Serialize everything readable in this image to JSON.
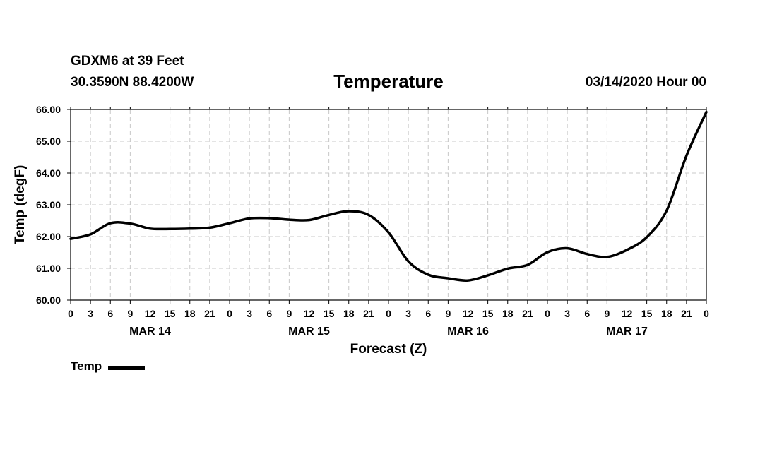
{
  "header": {
    "station": "GDXM6 at 39 Feet",
    "coords": "30.3590N 88.4200W",
    "title": "Temperature",
    "run_time": "03/14/2020 Hour 00"
  },
  "legend": {
    "label": "Temp"
  },
  "chart_data": {
    "type": "line",
    "title": "Temperature",
    "xlabel": "Forecast (Z)",
    "ylabel": "Temp (degF)",
    "ylim": [
      60,
      66
    ],
    "xlim": [
      0,
      96
    ],
    "grid": true,
    "legend_position": "bottom-left",
    "y_ticks": [
      "60.00",
      "61.00",
      "62.00",
      "63.00",
      "64.00",
      "65.00",
      "66.00"
    ],
    "x_tick_labels": [
      "0",
      "3",
      "6",
      "9",
      "12",
      "15",
      "18",
      "21",
      "0",
      "3",
      "6",
      "9",
      "12",
      "15",
      "18",
      "21",
      "0",
      "3",
      "6",
      "9",
      "12",
      "15",
      "18",
      "21",
      "0",
      "3",
      "6",
      "9",
      "12",
      "15",
      "18",
      "21",
      "0"
    ],
    "day_labels": [
      "MAR 14",
      "MAR 15",
      "MAR 16",
      "MAR 17"
    ],
    "series": [
      {
        "name": "Temp",
        "x": [
          0,
          3,
          6,
          9,
          12,
          15,
          18,
          21,
          24,
          27,
          30,
          33,
          36,
          39,
          42,
          45,
          48,
          51,
          54,
          57,
          60,
          63,
          66,
          69,
          72,
          75,
          78,
          81,
          84,
          87,
          90,
          93,
          96
        ],
        "values": [
          61.93,
          62.07,
          62.42,
          62.41,
          62.25,
          62.24,
          62.25,
          62.28,
          62.42,
          62.57,
          62.58,
          62.53,
          62.52,
          62.68,
          62.8,
          62.68,
          62.13,
          61.22,
          60.8,
          60.69,
          60.62,
          60.78,
          60.99,
          61.11,
          61.51,
          61.63,
          61.45,
          61.36,
          61.58,
          61.98,
          62.82,
          64.55,
          65.92
        ]
      }
    ]
  }
}
